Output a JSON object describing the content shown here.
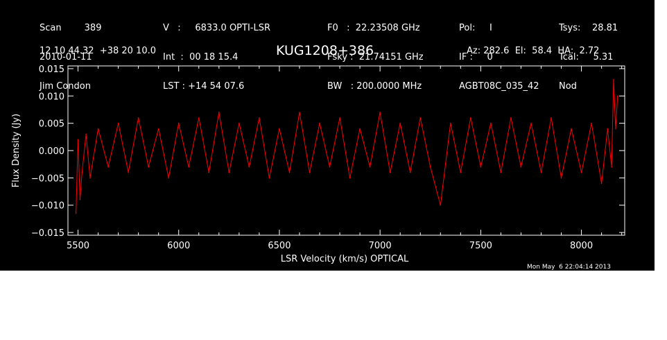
{
  "header": {
    "col1": [
      "Scan        389",
      "2010-01-11",
      "Jim Condon"
    ],
    "col2": [
      "V   :     6833.0 OPTI-LSR",
      "Int  :  00 18 15.4",
      "LST : +14 54 07.6"
    ],
    "col3": [
      "F0   :  22.23508 GHz",
      "Fsky :  21.74151 GHz",
      "BW   : 200.0000 MHz"
    ],
    "col4": [
      "Pol:     I",
      "IF :     0",
      "AGBT08C_035_42"
    ],
    "col5": [
      "Tsys:    28.81",
      "Tcal:     5.31",
      "Nod"
    ],
    "coords": "12 10 44.32  +38 20 10.0",
    "source": "KUG1208+386",
    "azel": "Az: 282.6  El:  58.4  HA:  2.72"
  },
  "timestamp": "Mon May  6 22:04:14 2013",
  "colors": {
    "background": "#000000",
    "axes": "#ffffff",
    "trace": "#ff0000"
  },
  "chart_data": {
    "type": "line",
    "title": "KUG1208+386",
    "xlabel": "LSR Velocity (km/s) OPTICAL",
    "ylabel": "Flux Density (Jy)",
    "xlim": [
      5450,
      8215
    ],
    "ylim": [
      -0.0155,
      0.0155
    ],
    "xticks": [
      5500,
      6000,
      6500,
      7000,
      7500,
      8000
    ],
    "xtick_labels": [
      "5500",
      "6000",
      "6500",
      "7000",
      "7500",
      "8000"
    ],
    "yticks": [
      -0.015,
      -0.01,
      -0.005,
      0.0,
      0.005,
      0.01,
      0.015
    ],
    "ytick_labels": [
      "−0.015",
      "−0.010",
      "−0.005",
      "0.000",
      "0.005",
      "0.010",
      "0.015"
    ],
    "series": [
      {
        "color": "#ff0000",
        "x": [
          5490,
          5500,
          5510,
          5520,
          5540,
          5560,
          5600,
          5650,
          5700,
          5750,
          5800,
          5850,
          5900,
          5950,
          6000,
          6050,
          6100,
          6150,
          6200,
          6250,
          6300,
          6350,
          6400,
          6450,
          6500,
          6550,
          6600,
          6650,
          6700,
          6750,
          6800,
          6850,
          6900,
          6950,
          7000,
          7050,
          7100,
          7150,
          7200,
          7250,
          7300,
          7350,
          7400,
          7450,
          7500,
          7550,
          7600,
          7650,
          7700,
          7750,
          7800,
          7850,
          7900,
          7950,
          8000,
          8050,
          8100,
          8130,
          8150,
          8160,
          8170,
          8180
        ],
        "y": [
          -0.0115,
          0.002,
          -0.009,
          -0.004,
          0.003,
          -0.005,
          0.004,
          -0.003,
          0.005,
          -0.004,
          0.006,
          -0.003,
          0.004,
          -0.005,
          0.005,
          -0.003,
          0.006,
          -0.004,
          0.007,
          -0.004,
          0.005,
          -0.003,
          0.006,
          -0.005,
          0.004,
          -0.004,
          0.007,
          -0.004,
          0.005,
          -0.003,
          0.006,
          -0.005,
          0.004,
          -0.003,
          0.007,
          -0.004,
          0.005,
          -0.004,
          0.006,
          -0.003,
          -0.01,
          0.005,
          -0.004,
          0.006,
          -0.003,
          0.005,
          -0.004,
          0.006,
          -0.003,
          0.005,
          -0.004,
          0.006,
          -0.005,
          0.004,
          -0.004,
          0.005,
          -0.006,
          0.004,
          -0.003,
          0.013,
          0.004,
          0.01
        ]
      }
    ],
    "grid": false,
    "legend": "none"
  }
}
